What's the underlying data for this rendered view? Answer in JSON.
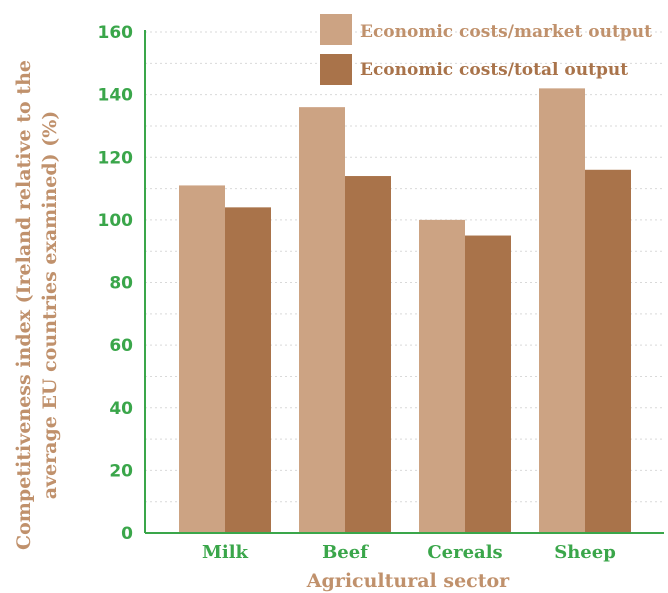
{
  "chart_data": {
    "type": "bar",
    "title": "",
    "xlabel": "Agricultural sector",
    "ylabel_line1": "Competitiveness index (Ireland relative to the",
    "ylabel_line2": "average EU countries examined) (%)",
    "categories": [
      "Milk",
      "Beef",
      "Cereals",
      "Sheep"
    ],
    "series": [
      {
        "name": "Economic costs/market output",
        "color": "#cca383",
        "values": [
          111,
          136,
          100,
          142
        ]
      },
      {
        "name": "Economic costs/total output",
        "color": "#a9734a",
        "values": [
          104,
          114,
          95,
          116
        ]
      }
    ],
    "ylim": [
      0,
      160
    ],
    "yticks": [
      0,
      20,
      40,
      60,
      80,
      100,
      120,
      140,
      160
    ],
    "grid": true,
    "legend": "top-right",
    "colors": {
      "axis": "#3aa64a",
      "tick_label": "#3aa64a",
      "axis_title": "#c0916c",
      "legend_text": "#c0916c",
      "legend_text_2": "#a9734a",
      "grid": "#d9d9d9"
    }
  }
}
